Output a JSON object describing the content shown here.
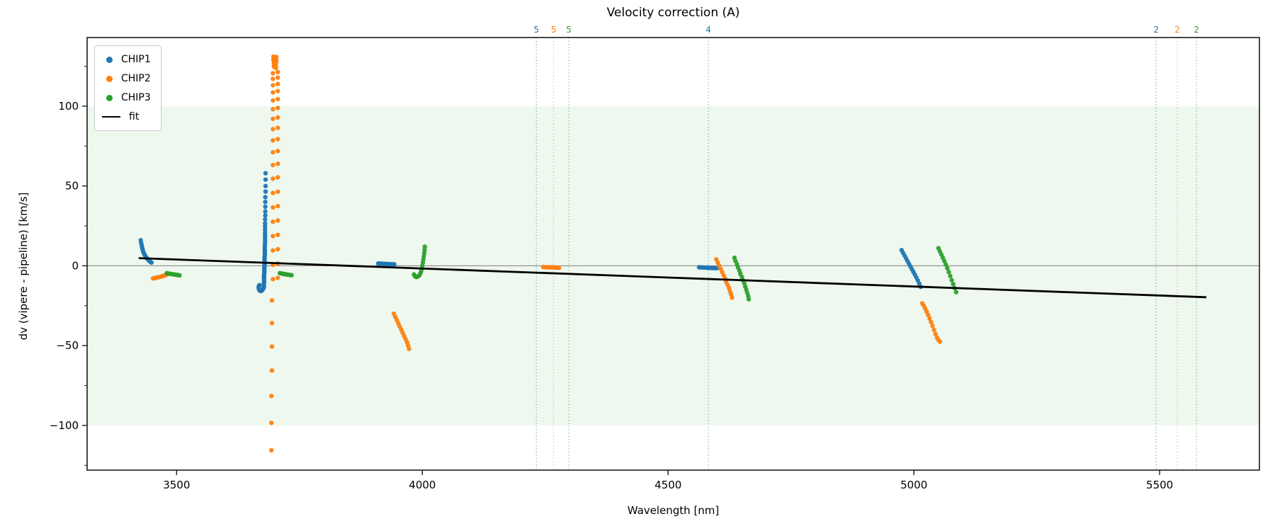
{
  "title": "Velocity correction (A)",
  "axes": {
    "xlabel": "Wavelength [nm]",
    "ylabel": "dv (vipere - pipeline) [km/s]"
  },
  "legend": {
    "items": [
      {
        "label": "CHIP1",
        "marker": "dot",
        "color": "#1f77b4"
      },
      {
        "label": "CHIP2",
        "marker": "dot",
        "color": "#ff7f0e"
      },
      {
        "label": "CHIP3",
        "marker": "dot",
        "color": "#2ca02c"
      },
      {
        "label": "fit",
        "marker": "line",
        "color": "#000000"
      }
    ]
  },
  "colors": {
    "chip1": "#1f77b4",
    "chip2": "#ff7f0e",
    "chip3": "#2ca02c",
    "fit": "#000000",
    "band": "rgba(44,160,44,0.08)",
    "zero_line": "#7f7f7f",
    "spine": "#1a1a1a"
  },
  "chart_data": {
    "type": "scatter",
    "title": "Velocity correction (A)",
    "xlabel": "Wavelength [nm]",
    "ylabel": "dv (vipere - pipeline) [km/s]",
    "xlim": [
      3318,
      5703
    ],
    "ylim": [
      -128,
      143
    ],
    "grid": false,
    "legend_position": "upper left",
    "xticks": {
      "values": [
        3500,
        4000,
        4500,
        5000,
        5500
      ],
      "labels": [
        "3500",
        "4000",
        "4500",
        "5000",
        "5500"
      ]
    },
    "yticks": {
      "values": [
        100,
        50,
        0,
        -50,
        -100
      ],
      "labels": [
        "100",
        "50",
        "0",
        "−50",
        "−100"
      ]
    },
    "y_minor_ticks": [
      125,
      75,
      25,
      -25,
      -75,
      -125
    ],
    "shaded_band": {
      "ymin": -100,
      "ymax": 100,
      "color": "rgba(44,160,44,0.08)"
    },
    "zero_line": {
      "y": 0,
      "color": "#7f7f7f"
    },
    "fit_line": {
      "label": "fit",
      "color": "#000000",
      "x": [
        3423,
        5595
      ],
      "y": [
        4.8,
        -19.7
      ]
    },
    "vlines": [
      {
        "x": 4232,
        "label": "5",
        "color": "#1f77b4"
      },
      {
        "x": 4267,
        "label": "5",
        "color": "#ff7f0e"
      },
      {
        "x": 4298,
        "label": "5",
        "color": "#2ca02c"
      },
      {
        "x": 4582,
        "label": "4",
        "color": "#1f77b4"
      },
      {
        "x": 5493,
        "label": "2",
        "color": "#1f77b4"
      },
      {
        "x": 5536,
        "label": "2",
        "color": "#ff7f0e"
      },
      {
        "x": 5575,
        "label": "2",
        "color": "#2ca02c"
      }
    ],
    "series": [
      {
        "name": "CHIP1",
        "color": "#1f77b4",
        "marker_radius": 3.2,
        "points": [
          [
            3427,
            16
          ],
          [
            3428,
            14.3
          ],
          [
            3429,
            12.8
          ],
          [
            3430,
            11.4
          ],
          [
            3431,
            10.1
          ],
          [
            3432,
            9
          ],
          [
            3433.5,
            7.9
          ],
          [
            3435,
            6.9
          ],
          [
            3437,
            5.9
          ],
          [
            3439,
            5
          ],
          [
            3441,
            4.2
          ],
          [
            3443,
            3.5
          ],
          [
            3445,
            2.9
          ],
          [
            3447,
            2.4
          ],
          [
            3449,
            2
          ],
          [
            3681,
            58
          ],
          [
            3681,
            54
          ],
          [
            3681,
            50
          ],
          [
            3681,
            46.5
          ],
          [
            3680.5,
            43
          ],
          [
            3680.5,
            40
          ],
          [
            3680.5,
            37
          ],
          [
            3680.5,
            34
          ],
          [
            3680.5,
            31.5
          ],
          [
            3680,
            29
          ],
          [
            3680,
            26.5
          ],
          [
            3680,
            24.5
          ],
          [
            3680,
            22.5
          ],
          [
            3680,
            20.5
          ],
          [
            3680,
            18.8
          ],
          [
            3680,
            17.2
          ],
          [
            3680,
            15.6
          ],
          [
            3680,
            14.1
          ],
          [
            3679.5,
            12.7
          ],
          [
            3679.5,
            11.4
          ],
          [
            3679.5,
            10.1
          ],
          [
            3679.5,
            8.9
          ],
          [
            3679.5,
            7.8
          ],
          [
            3679.5,
            6.7
          ],
          [
            3679,
            5.6
          ],
          [
            3679,
            4.6
          ],
          [
            3679,
            3.6
          ],
          [
            3679,
            2.7
          ],
          [
            3679,
            1.8
          ],
          [
            3679,
            0.9
          ],
          [
            3679,
            0
          ],
          [
            3678.5,
            -0.9
          ],
          [
            3678.5,
            -1.8
          ],
          [
            3678.5,
            -2.7
          ],
          [
            3678.5,
            -3.6
          ],
          [
            3678.5,
            -4.5
          ],
          [
            3678,
            -5.4
          ],
          [
            3678,
            -6.3
          ],
          [
            3678,
            -7.2
          ],
          [
            3678,
            -8.1
          ],
          [
            3678,
            -9
          ],
          [
            3678,
            -9.9
          ],
          [
            3678,
            -10.8
          ],
          [
            3677.5,
            -11.7
          ],
          [
            3677.5,
            -12.6
          ],
          [
            3677.5,
            -13.4
          ],
          [
            3676.5,
            -14.2
          ],
          [
            3675,
            -15
          ],
          [
            3673,
            -15.6
          ],
          [
            3671,
            -15.8
          ],
          [
            3669,
            -15.5
          ],
          [
            3667.5,
            -14.6
          ],
          [
            3667,
            -13.6
          ],
          [
            3667.5,
            -12.7
          ],
          [
            3668.5,
            -12.1
          ],
          [
            3910,
            1.4
          ],
          [
            3913,
            1.4
          ],
          [
            3916,
            1.3
          ],
          [
            3919,
            1.3
          ],
          [
            3922,
            1.2
          ],
          [
            3925,
            1.2
          ],
          [
            3928,
            1.1
          ],
          [
            3931,
            1.1
          ],
          [
            3934,
            1
          ],
          [
            3937,
            1
          ],
          [
            3940,
            0.9
          ],
          [
            3943,
            0.9
          ],
          [
            4563,
            -0.9
          ],
          [
            4566,
            -1
          ],
          [
            4569,
            -1
          ],
          [
            4572,
            -1.1
          ],
          [
            4575,
            -1.1
          ],
          [
            4578,
            -1.2
          ],
          [
            4581,
            -1.2
          ],
          [
            4584,
            -1.3
          ],
          [
            4587,
            -1.3
          ],
          [
            4590,
            -1.4
          ],
          [
            4593,
            -1.4
          ],
          [
            4596,
            -1.5
          ],
          [
            4599,
            -1.5
          ],
          [
            4975,
            9.8
          ],
          [
            4978,
            8.1
          ],
          [
            4981,
            6.4
          ],
          [
            4984,
            4.7
          ],
          [
            4987,
            3
          ],
          [
            4990,
            1.3
          ],
          [
            4993,
            -0.4
          ],
          [
            4996,
            -2.1
          ],
          [
            4999,
            -3.8
          ],
          [
            5002,
            -5.5
          ],
          [
            5005,
            -7.3
          ],
          [
            5008,
            -9.2
          ],
          [
            5011,
            -11.2
          ],
          [
            5014,
            -13.2
          ]
        ]
      },
      {
        "name": "CHIP2",
        "color": "#ff7f0e",
        "marker_radius": 3.2,
        "points": [
          [
            3452,
            -7.9
          ],
          [
            3455,
            -7.7
          ],
          [
            3458,
            -7.5
          ],
          [
            3461,
            -7.3
          ],
          [
            3464,
            -7.1
          ],
          [
            3467,
            -6.9
          ],
          [
            3470,
            -6.6
          ],
          [
            3473,
            -6.3
          ],
          [
            3476,
            -6
          ],
          [
            3479,
            -5.7
          ],
          [
            3697,
            131
          ],
          [
            3703,
            130.8
          ],
          [
            3698,
            130
          ],
          [
            3702,
            129.5
          ],
          [
            3697,
            129
          ],
          [
            3703,
            128.5
          ],
          [
            3698,
            128
          ],
          [
            3702,
            127.3
          ],
          [
            3698,
            126.5
          ],
          [
            3702,
            125.7
          ],
          [
            3698,
            124.8
          ],
          [
            3702,
            124
          ],
          [
            3696,
            120.6
          ],
          [
            3706,
            121.4
          ],
          [
            3696,
            117.1
          ],
          [
            3706,
            117.9
          ],
          [
            3696,
            113.1
          ],
          [
            3706,
            113.9
          ],
          [
            3696,
            108.6
          ],
          [
            3706,
            109.4
          ],
          [
            3696,
            103.6
          ],
          [
            3706,
            104.4
          ],
          [
            3696,
            98.1
          ],
          [
            3706,
            98.9
          ],
          [
            3696,
            92.1
          ],
          [
            3706,
            92.9
          ],
          [
            3696,
            85.6
          ],
          [
            3706,
            86.4
          ],
          [
            3696,
            78.6
          ],
          [
            3706,
            79.4
          ],
          [
            3696,
            71.1
          ],
          [
            3706,
            71.9
          ],
          [
            3696,
            63.1
          ],
          [
            3706,
            63.9
          ],
          [
            3696,
            54.6
          ],
          [
            3706,
            55.4
          ],
          [
            3696,
            45.6
          ],
          [
            3706,
            46.4
          ],
          [
            3696,
            36.6
          ],
          [
            3706,
            37.4
          ],
          [
            3696,
            27.6
          ],
          [
            3706,
            28.4
          ],
          [
            3696,
            18.6
          ],
          [
            3706,
            19.4
          ],
          [
            3696,
            9.6
          ],
          [
            3706,
            10.4
          ],
          [
            3696,
            0.6
          ],
          [
            3706,
            1.4
          ],
          [
            3696,
            -8.4
          ],
          [
            3706,
            -7.6
          ],
          [
            3694,
            -21.7
          ],
          [
            3694,
            -35.9
          ],
          [
            3694,
            -50.6
          ],
          [
            3694,
            -65.6
          ],
          [
            3693,
            -81.6
          ],
          [
            3693,
            -98.4
          ],
          [
            3693,
            -115.6
          ],
          [
            3942,
            -30
          ],
          [
            3945,
            -32
          ],
          [
            3948,
            -34
          ],
          [
            3951,
            -36
          ],
          [
            3954,
            -38
          ],
          [
            3957,
            -40
          ],
          [
            3960,
            -42
          ],
          [
            3963,
            -44
          ],
          [
            3966,
            -46
          ],
          [
            3969,
            -48
          ],
          [
            3971,
            -50
          ],
          [
            3973,
            -52
          ],
          [
            4246,
            -0.8
          ],
          [
            4250,
            -0.9
          ],
          [
            4254,
            -0.9
          ],
          [
            4258,
            -1
          ],
          [
            4262,
            -1
          ],
          [
            4266,
            -1
          ],
          [
            4270,
            -1.1
          ],
          [
            4274,
            -1.1
          ],
          [
            4278,
            -1.2
          ],
          [
            4598,
            4
          ],
          [
            4601,
            2
          ],
          [
            4604,
            0
          ],
          [
            4607,
            -2
          ],
          [
            4610,
            -4
          ],
          [
            4613,
            -6
          ],
          [
            4616,
            -8
          ],
          [
            4618,
            -10
          ],
          [
            4621,
            -12
          ],
          [
            4624,
            -14
          ],
          [
            4626,
            -16
          ],
          [
            4628,
            -18
          ],
          [
            4630,
            -20
          ],
          [
            5017,
            -23.5
          ],
          [
            5020,
            -25
          ],
          [
            5023,
            -26.8
          ],
          [
            5026,
            -28.7
          ],
          [
            5029,
            -30.8
          ],
          [
            5032,
            -33
          ],
          [
            5035,
            -35.3
          ],
          [
            5038,
            -37.7
          ],
          [
            5041,
            -40.2
          ],
          [
            5044,
            -42.7
          ],
          [
            5047,
            -45
          ],
          [
            5050,
            -46.5
          ],
          [
            5053,
            -47.5
          ]
        ]
      },
      {
        "name": "CHIP3",
        "color": "#2ca02c",
        "marker_radius": 3.2,
        "points": [
          [
            3480,
            -4.6
          ],
          [
            3483,
            -4.8
          ],
          [
            3486,
            -5
          ],
          [
            3489,
            -5.1
          ],
          [
            3492,
            -5.3
          ],
          [
            3495,
            -5.4
          ],
          [
            3498,
            -5.6
          ],
          [
            3501,
            -5.7
          ],
          [
            3504,
            -5.9
          ],
          [
            3506,
            -6
          ],
          [
            3710,
            -4.6
          ],
          [
            3713,
            -4.8
          ],
          [
            3716,
            -5
          ],
          [
            3719,
            -5.2
          ],
          [
            3722,
            -5.3
          ],
          [
            3725,
            -5.5
          ],
          [
            3728,
            -5.6
          ],
          [
            3731,
            -5.8
          ],
          [
            3734,
            -5.9
          ],
          [
            4005,
            12
          ],
          [
            4004.5,
            10
          ],
          [
            4004,
            8
          ],
          [
            4003,
            6
          ],
          [
            4002,
            4
          ],
          [
            4001,
            2
          ],
          [
            4000,
            0
          ],
          [
            3999,
            -1.8
          ],
          [
            3997.5,
            -3.4
          ],
          [
            3996,
            -4.8
          ],
          [
            3994,
            -5.9
          ],
          [
            3991.5,
            -6.6
          ],
          [
            3989,
            -7
          ],
          [
            3986.5,
            -6.9
          ],
          [
            3984.5,
            -6.3
          ],
          [
            3983,
            -5.4
          ],
          [
            4635,
            5
          ],
          [
            4637,
            3
          ],
          [
            4640,
            1
          ],
          [
            4642,
            -1
          ],
          [
            4645,
            -3
          ],
          [
            4647,
            -5
          ],
          [
            4650,
            -7
          ],
          [
            4652,
            -9
          ],
          [
            4655,
            -11
          ],
          [
            4657,
            -13
          ],
          [
            4659,
            -15
          ],
          [
            4661,
            -17
          ],
          [
            4663,
            -19
          ],
          [
            4664,
            -21
          ],
          [
            5050,
            11
          ],
          [
            5053,
            9
          ],
          [
            5056,
            7
          ],
          [
            5059,
            5
          ],
          [
            5062,
            3
          ],
          [
            5065,
            0.8
          ],
          [
            5068,
            -1.5
          ],
          [
            5071,
            -3.9
          ],
          [
            5074,
            -6.4
          ],
          [
            5077,
            -9
          ],
          [
            5080,
            -11.5
          ],
          [
            5083,
            -14
          ],
          [
            5086,
            -16.5
          ]
        ]
      }
    ]
  }
}
